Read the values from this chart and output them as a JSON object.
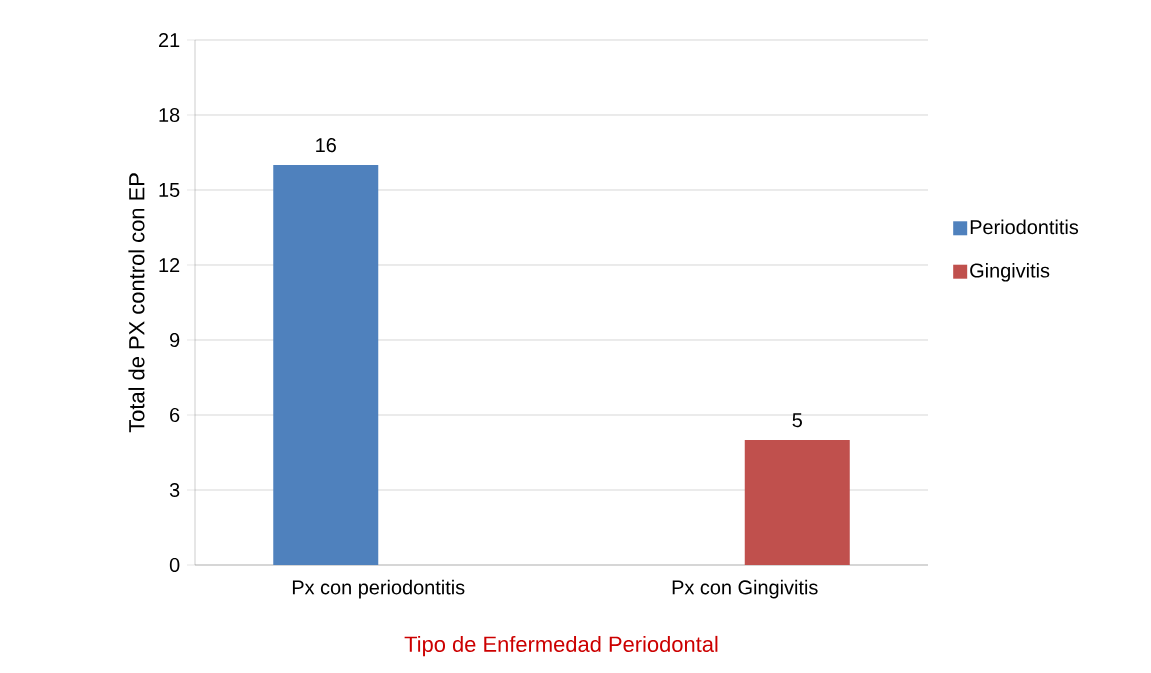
{
  "chart_data": {
    "type": "bar",
    "xlabel": "Tipo de Enfermedad Periodontal",
    "ylabel": "Total de PX control con EP",
    "categories": [
      "Px con periodontitis",
      "Px con Gingivitis"
    ],
    "series": [
      {
        "name": "Periodontitis",
        "color": "#4f81bd",
        "values": [
          16,
          null
        ]
      },
      {
        "name": "Gingivitis",
        "color": "#c0504d",
        "values": [
          null,
          5
        ]
      }
    ],
    "ylim": [
      0,
      21
    ],
    "yticks": [
      0,
      3,
      6,
      9,
      12,
      15,
      18,
      21
    ],
    "grid": "y",
    "legend": "right",
    "data_labels": true
  }
}
